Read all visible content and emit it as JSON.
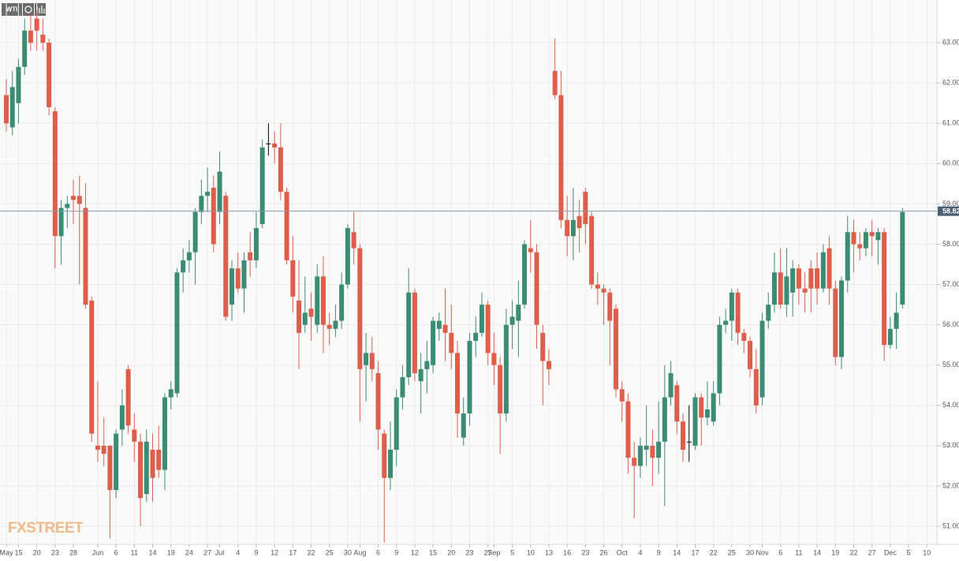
{
  "chart_data": {
    "type": "candlestick",
    "title": "WTI",
    "watermark": "FXSTREET",
    "categories": [
      "May",
      null,
      "15",
      null,
      null,
      "20",
      null,
      null,
      "23",
      null,
      null,
      "28",
      null,
      null,
      null,
      "Jun",
      null,
      null,
      "6",
      null,
      null,
      "11",
      null,
      null,
      "14",
      null,
      null,
      "19",
      null,
      null,
      "24",
      null,
      null,
      "27",
      null,
      "Jul",
      null,
      null,
      "4",
      null,
      null,
      "9",
      null,
      null,
      "12",
      null,
      null,
      "17",
      null,
      null,
      "22",
      null,
      null,
      "25",
      null,
      null,
      "30",
      null,
      "Aug",
      null,
      null,
      "6",
      null,
      null,
      "9",
      null,
      null,
      "12",
      null,
      null,
      "15",
      null,
      null,
      "20",
      null,
      null,
      "23",
      null,
      null,
      "27",
      "Sep",
      null,
      null,
      "5",
      null,
      null,
      "10",
      null,
      null,
      "13",
      null,
      null,
      "16",
      null,
      null,
      "23",
      null,
      null,
      "26",
      null,
      null,
      "Oct",
      null,
      null,
      "4",
      null,
      null,
      "9",
      null,
      null,
      "14",
      null,
      null,
      "17",
      null,
      null,
      "22",
      null,
      null,
      "25",
      null,
      null,
      "30",
      null,
      "Nov",
      null,
      null,
      "6",
      null,
      null,
      "11",
      null,
      null,
      "14",
      null,
      null,
      "19",
      null,
      null,
      "22",
      null,
      null,
      "27",
      null,
      null,
      "Dec",
      null,
      null,
      "5",
      null,
      null,
      "10"
    ],
    "open": [
      61.7,
      60.9,
      61.5,
      62.4,
      63.3,
      63.6,
      63.2,
      63.0,
      61.3,
      58.2,
      58.9,
      59.2,
      59.2,
      58.9,
      56.6,
      53.0,
      53.0,
      53.0,
      51.9,
      53.4,
      54.9,
      53.4,
      53.1,
      51.8,
      52.9,
      52.9,
      52.4,
      54.2,
      54.3,
      57.3,
      57.6,
      57.8,
      58.8,
      59.2,
      59.4,
      58.8,
      59.2,
      56.5,
      57.4,
      56.9,
      57.8,
      57.6,
      58.5,
      60.5,
      60.5,
      60.4,
      59.3,
      57.6,
      56.6,
      56.0,
      56.4,
      56.0,
      57.2,
      56.0,
      55.9,
      56.1,
      57.0,
      58.3,
      57.9,
      55.0,
      55.3,
      54.8,
      53.3,
      52.2,
      52.9,
      54.2,
      54.7,
      56.8,
      54.6,
      54.9,
      55.0,
      55.9,
      56.0,
      55.8,
      55.3,
      53.2,
      53.8,
      55.6,
      55.8,
      56.5,
      55.3,
      55.0,
      53.8,
      56.0,
      56.1,
      56.5,
      57.9,
      57.8,
      55.8,
      55.1,
      62.3,
      61.7,
      58.6,
      58.2,
      58.7,
      59.3,
      58.7,
      57.0,
      56.9,
      56.8,
      56.4,
      54.4,
      54.1,
      52.7,
      52.5,
      52.9,
      53.0,
      52.7,
      53.1,
      54.2,
      54.5,
      53.6,
      53.1,
      53.0,
      54.2,
      53.7,
      53.6,
      54.3,
      56.0,
      56.1,
      56.8,
      55.8,
      55.6,
      54.9,
      54.2,
      56.1,
      56.5,
      57.3,
      56.5,
      56.8,
      57.4,
      56.9,
      57.4,
      57.4,
      56.9,
      57.9,
      56.9,
      55.2,
      57.1,
      58.3,
      58.0,
      57.9,
      58.3,
      58.1,
      58.3,
      55.5,
      55.9,
      56.5,
      null,
      null,
      null,
      null
    ],
    "high": [
      62.1,
      62.3,
      62.6,
      63.6,
      63.7,
      63.8,
      63.6,
      63.1,
      61.4,
      59.1,
      59.2,
      59.6,
      59.7,
      59.5,
      56.7,
      54.6,
      53.7,
      53.0,
      53.4,
      54.4,
      55.0,
      53.8,
      53.3,
      53.4,
      53.3,
      53.5,
      54.3,
      54.6,
      57.4,
      57.9,
      58.1,
      58.9,
      59.6,
      59.9,
      59.7,
      60.3,
      59.3,
      57.6,
      57.8,
      57.8,
      58.3,
      58.8,
      60.6,
      61.0,
      60.8,
      61.0,
      59.4,
      58.2,
      57.6,
      57.2,
      56.8,
      57.5,
      57.7,
      56.3,
      56.5,
      57.3,
      58.5,
      58.8,
      58.0,
      55.8,
      55.7,
      55.1,
      53.4,
      53.6,
      54.4,
      55.0,
      57.4,
      56.9,
      55.3,
      55.6,
      56.2,
      56.3,
      56.9,
      56.5,
      55.6,
      54.2,
      55.8,
      56.2,
      56.8,
      56.6,
      55.8,
      55.2,
      56.4,
      56.6,
      57.1,
      58.1,
      58.6,
      58.0,
      56.0,
      55.4,
      63.1,
      62.3,
      59.2,
      59.4,
      59.1,
      59.4,
      58.8,
      57.3,
      57.0,
      56.9,
      56.5,
      54.6,
      54.3,
      53.1,
      53.2,
      54.0,
      53.4,
      54.1,
      55.0,
      55.1,
      54.6,
      53.8,
      54.0,
      54.3,
      54.3,
      54.6,
      54.6,
      56.2,
      56.4,
      56.9,
      56.9,
      55.9,
      55.7,
      55.4,
      56.3,
      56.8,
      57.8,
      57.9,
      57.9,
      57.6,
      57.5,
      57.3,
      57.6,
      57.8,
      58.0,
      58.2,
      57.1,
      57.2,
      58.7,
      58.6,
      58.3,
      58.4,
      58.6,
      58.4,
      58.4,
      56.2,
      56.8,
      58.9,
      null,
      null,
      null,
      null
    ],
    "low": [
      60.8,
      60.7,
      61.0,
      62.2,
      62.8,
      62.8,
      62.8,
      61.2,
      57.4,
      57.5,
      58.4,
      58.5,
      57.0,
      56.4,
      53.1,
      52.6,
      52.5,
      50.7,
      51.7,
      53.0,
      53.3,
      52.6,
      51.0,
      51.6,
      51.6,
      52.2,
      51.9,
      53.9,
      54.2,
      56.8,
      57.3,
      57.0,
      58.5,
      58.8,
      57.8,
      58.5,
      56.1,
      56.1,
      56.8,
      56.3,
      57.2,
      57.4,
      58.4,
      60.2,
      60.0,
      59.1,
      57.5,
      56.3,
      54.9,
      55.8,
      55.6,
      55.8,
      55.3,
      55.5,
      55.7,
      55.9,
      56.9,
      57.5,
      53.6,
      54.1,
      54.6,
      52.9,
      50.6,
      51.9,
      52.5,
      53.9,
      54.5,
      54.6,
      53.8,
      54.3,
      54.8,
      55.6,
      55.1,
      54.9,
      53.2,
      53.0,
      53.5,
      55.2,
      55.7,
      55.0,
      54.5,
      52.8,
      53.6,
      55.4,
      55.2,
      56.4,
      57.3,
      55.4,
      54.0,
      54.5,
      61.6,
      58.4,
      57.7,
      57.6,
      57.8,
      58.0,
      56.9,
      56.5,
      56.0,
      55.0,
      54.2,
      53.6,
      52.3,
      51.2,
      52.2,
      52.5,
      52.0,
      52.3,
      51.5,
      54.0,
      53.3,
      52.6,
      52.6,
      52.9,
      53.0,
      53.5,
      53.5,
      54.0,
      55.8,
      55.6,
      55.5,
      55.3,
      54.7,
      53.8,
      54.0,
      55.9,
      56.3,
      56.4,
      56.2,
      56.2,
      56.5,
      56.3,
      56.3,
      56.5,
      56.8,
      56.5,
      55.0,
      54.9,
      56.8,
      57.3,
      57.6,
      57.7,
      57.7,
      57.5,
      55.1,
      55.4,
      55.4,
      56.4,
      null,
      null,
      null,
      null
    ],
    "close": [
      61.0,
      61.9,
      62.4,
      63.3,
      63.0,
      63.3,
      63.0,
      61.4,
      58.2,
      58.9,
      59.0,
      59.1,
      59.0,
      56.5,
      53.3,
      52.9,
      52.8,
      51.9,
      53.3,
      54.0,
      53.5,
      53.1,
      51.7,
      53.1,
      52.2,
      52.4,
      54.2,
      54.4,
      57.3,
      57.6,
      57.8,
      58.8,
      59.2,
      59.3,
      58.0,
      59.8,
      56.2,
      57.4,
      56.9,
      57.6,
      57.6,
      58.4,
      60.4,
      60.5,
      60.4,
      59.3,
      57.6,
      56.7,
      55.8,
      56.3,
      56.2,
      57.2,
      56.0,
      55.9,
      56.1,
      57.0,
      58.4,
      57.9,
      54.9,
      55.3,
      54.9,
      53.4,
      52.2,
      52.9,
      54.2,
      54.7,
      56.8,
      54.8,
      54.9,
      55.1,
      56.1,
      56.1,
      55.8,
      55.3,
      53.8,
      53.8,
      55.6,
      55.8,
      56.5,
      55.3,
      55.0,
      53.8,
      56.0,
      56.2,
      56.5,
      58.0,
      57.8,
      56.0,
      55.1,
      54.9,
      61.7,
      58.6,
      58.2,
      58.6,
      58.4,
      58.5,
      57.0,
      56.9,
      56.8,
      56.1,
      54.4,
      54.1,
      52.7,
      52.5,
      53.0,
      53.0,
      52.7,
      53.1,
      54.2,
      54.8,
      53.6,
      52.9,
      53.1,
      54.2,
      53.7,
      53.9,
      54.3,
      56.0,
      56.1,
      56.8,
      55.8,
      55.6,
      54.9,
      54.0,
      56.1,
      56.5,
      57.3,
      56.5,
      57.2,
      57.4,
      56.9,
      56.8,
      56.9,
      56.9,
      57.8,
      56.9,
      55.2,
      57.1,
      58.3,
      58.0,
      57.9,
      58.3,
      58.2,
      58.3,
      55.5,
      55.9,
      56.3,
      58.8,
      null,
      null,
      null,
      null
    ],
    "up_color": "#3b8c72",
    "down_color": "#de5e4b",
    "doji_color": "#000000",
    "ylim": [
      50.55,
      64.06
    ],
    "yticks": [
      {
        "value": 51,
        "label": "51.00"
      },
      {
        "value": 52,
        "label": "52.00"
      },
      {
        "value": 53,
        "label": "53.00"
      },
      {
        "value": 54,
        "label": "54.00"
      },
      {
        "value": 55,
        "label": "55.00"
      },
      {
        "value": 56,
        "label": "56.00"
      },
      {
        "value": 57,
        "label": "57.00"
      },
      {
        "value": 58,
        "label": "58.00"
      },
      {
        "value": 59,
        "label": "59.00"
      },
      {
        "value": 60,
        "label": "60.00"
      },
      {
        "value": 61,
        "label": "61.00"
      },
      {
        "value": 62,
        "label": "62.00"
      },
      {
        "value": 63,
        "label": "63.00"
      }
    ],
    "current_price": 58.82,
    "grid": true
  }
}
